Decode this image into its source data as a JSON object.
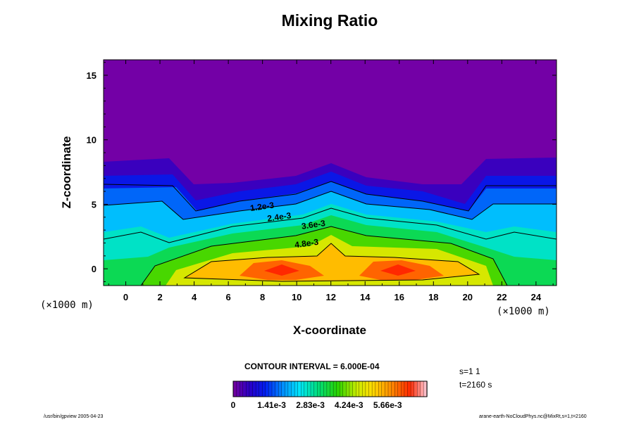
{
  "chart_data": {
    "type": "heatmap",
    "title": "Mixing Ratio",
    "xlabel": "X-coordinate",
    "ylabel": "Z-coordinate",
    "x_unit": "(×1000 m)",
    "y_unit": "(×1000 m)",
    "xlim": [
      -1.3,
      25.2
    ],
    "ylim": [
      -1.3,
      16.2
    ],
    "x_ticks": [
      0,
      2,
      4,
      6,
      8,
      10,
      12,
      14,
      16,
      18,
      20,
      22,
      24
    ],
    "y_ticks": [
      0,
      5,
      10,
      15
    ],
    "contour_interval": "CONTOUR INTERVAL = 6.000E-04",
    "contour_labels": [
      {
        "text": "1.2e-3",
        "x": 8.0,
        "z": 4.6
      },
      {
        "text": "2.4e-3",
        "x": 9.0,
        "z": 3.8
      },
      {
        "text": "3.6e-3",
        "x": 11.0,
        "z": 3.2
      },
      {
        "text": "4.8e-3",
        "x": 10.6,
        "z": 1.75
      }
    ],
    "colorbar": {
      "min": 0,
      "max": 0.0071,
      "tick_labels": [
        "0",
        "1.41e-3",
        "2.83e-3",
        "4.24e-3",
        "5.66e-3"
      ]
    },
    "grid": false
  },
  "info": {
    "s": "s=1 1",
    "t": "t=2160 s"
  },
  "footer": {
    "left": "/usr/bin/gpview 2005-04-23",
    "right": "arane-earth-NoCloudPhys.nc@MixRt,s=1,t=2160"
  }
}
